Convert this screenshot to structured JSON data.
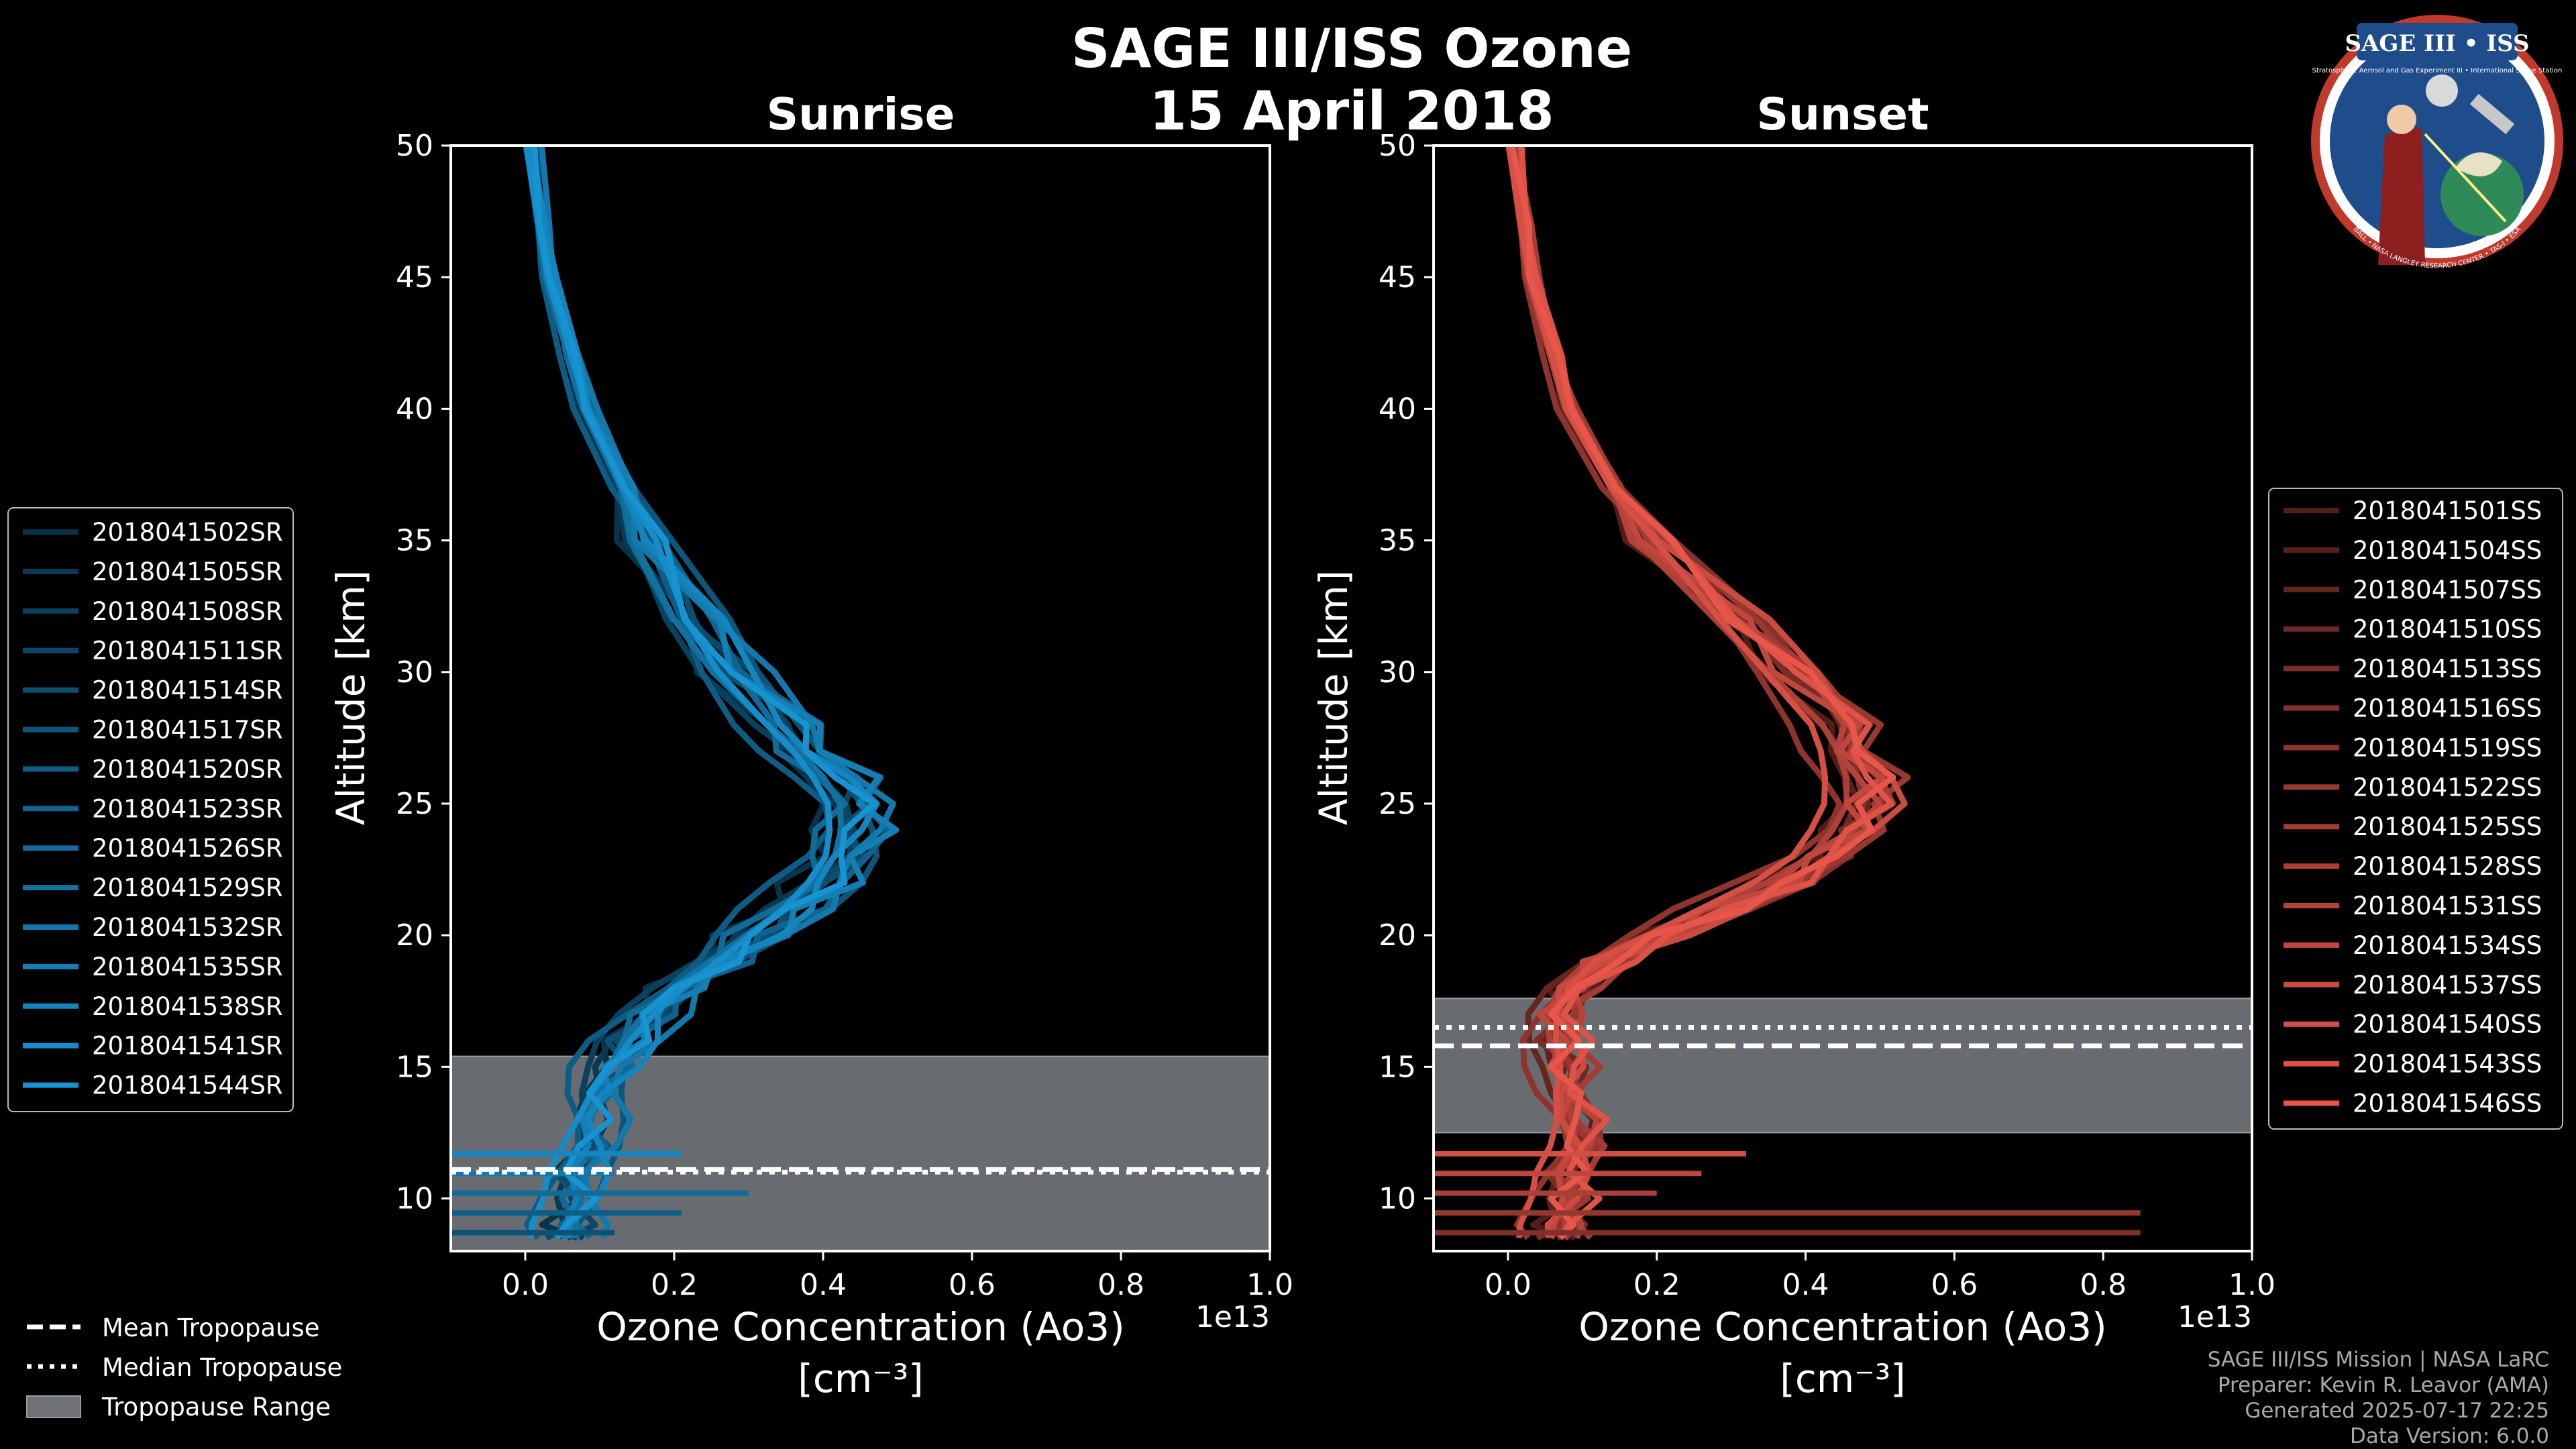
{
  "figure": {
    "title": "SAGE III/ISS Ozone",
    "date": "15 April 2018"
  },
  "badge": {
    "title": "SAGE III • ISS",
    "subtitle": "Stratospheric Aerosol and Gas Experiment III • International Space Station",
    "ring": "BALL • NASA LANGLEY RESEARCH CENTER • TAS-I • ESA"
  },
  "colors": {
    "sunrise": "#1793d2",
    "sunset": "#e8564a",
    "range": "#6e7276",
    "background": "#000000",
    "mean_line": "#ffffff",
    "median_line": "#ffffff"
  },
  "legend_tropopause": [
    {
      "label": "Mean Tropopause",
      "style": "dashed"
    },
    {
      "label": "Median Tropopause",
      "style": "dotted"
    },
    {
      "label": "Tropopause Range",
      "style": "patch"
    }
  ],
  "footer": [
    "SAGE III/ISS Mission | NASA LaRC",
    "Preparer: Kevin R. Leavor (AMA)",
    "Generated 2025-07-17 22:25",
    "Data Version: 6.0.0"
  ],
  "chart_data": [
    {
      "type": "line",
      "title": "Sunrise",
      "xlabel": "Ozone Concentration (Ao3)",
      "xunits": "[cm⁻³]",
      "ylabel": "Altitude [km]",
      "x_offset_label": "1e13",
      "xlim": [
        -0.1,
        1.0
      ],
      "ylim": [
        8,
        50
      ],
      "xticks": [
        "0.0",
        "0.2",
        "0.4",
        "0.6",
        "0.8",
        "1.0"
      ],
      "yticks": [
        "10",
        "15",
        "20",
        "25",
        "30",
        "35",
        "40",
        "45",
        "50"
      ],
      "tropopause": {
        "mean": 11.1,
        "median": 11.0,
        "range": [
          8,
          15.4
        ]
      },
      "altitudes": [
        50,
        47,
        45,
        42,
        40,
        37,
        35,
        32,
        30,
        28,
        27,
        26,
        25,
        24,
        23,
        22,
        21,
        20,
        19,
        18,
        17,
        16,
        15,
        14,
        13,
        12,
        11,
        10,
        9,
        8.5
      ],
      "base_profile": [
        0.005,
        0.02,
        0.03,
        0.06,
        0.08,
        0.13,
        0.16,
        0.22,
        0.27,
        0.34,
        0.38,
        0.41,
        0.43,
        0.43,
        0.42,
        0.39,
        0.35,
        0.3,
        0.25,
        0.2,
        0.16,
        0.13,
        0.11,
        0.09,
        0.08,
        0.07,
        0.06,
        0.06,
        0.05,
        0.05
      ],
      "series": [
        {
          "name": "2018041502SR",
          "shift": 0.0,
          "scale": 0.92
        },
        {
          "name": "2018041505SR",
          "shift": 0.01,
          "scale": 0.96
        },
        {
          "name": "2018041508SR",
          "shift": -0.01,
          "scale": 1.0
        },
        {
          "name": "2018041511SR",
          "shift": 0.02,
          "scale": 0.98
        },
        {
          "name": "2018041514SR",
          "shift": 0.0,
          "scale": 1.04
        },
        {
          "name": "2018041517SR",
          "shift": 0.03,
          "scale": 1.02
        },
        {
          "name": "2018041520SR",
          "shift": -0.02,
          "scale": 0.94
        },
        {
          "name": "2018041523SR",
          "shift": 0.01,
          "scale": 1.08
        },
        {
          "name": "2018041526SR",
          "shift": 0.02,
          "scale": 0.9
        },
        {
          "name": "2018041529SR",
          "shift": -0.01,
          "scale": 1.06
        },
        {
          "name": "2018041532SR",
          "shift": 0.04,
          "scale": 1.0
        },
        {
          "name": "2018041535SR",
          "shift": 0.0,
          "scale": 1.1
        },
        {
          "name": "2018041538SR",
          "shift": 0.03,
          "scale": 0.97
        },
        {
          "name": "2018041541SR",
          "shift": -0.02,
          "scale": 1.05
        },
        {
          "name": "2018041544SR",
          "shift": 0.01,
          "scale": 1.01
        }
      ]
    },
    {
      "type": "line",
      "title": "Sunset",
      "xlabel": "Ozone Concentration (Ao3)",
      "xunits": "[cm⁻³]",
      "ylabel": "Altitude [km]",
      "x_offset_label": "1e13",
      "xlim": [
        -0.1,
        1.0
      ],
      "ylim": [
        8,
        50
      ],
      "xticks": [
        "0.0",
        "0.2",
        "0.4",
        "0.6",
        "0.8",
        "1.0"
      ],
      "yticks": [
        "10",
        "15",
        "20",
        "25",
        "30",
        "35",
        "40",
        "45",
        "50"
      ],
      "tropopause": {
        "mean": 15.8,
        "median": 16.5,
        "range": [
          12.5,
          17.6
        ]
      },
      "altitudes": [
        50,
        47,
        45,
        42,
        40,
        37,
        35,
        32,
        30,
        28,
        27,
        26,
        25,
        24,
        23,
        22,
        21,
        20,
        19,
        18,
        17,
        16,
        15,
        14,
        13,
        12,
        11,
        10,
        9,
        8.5
      ],
      "base_profile": [
        0.005,
        0.02,
        0.03,
        0.06,
        0.08,
        0.14,
        0.19,
        0.3,
        0.37,
        0.44,
        0.46,
        0.47,
        0.47,
        0.45,
        0.42,
        0.36,
        0.28,
        0.2,
        0.12,
        0.08,
        0.06,
        0.06,
        0.07,
        0.07,
        0.08,
        0.08,
        0.07,
        0.07,
        0.06,
        0.06
      ],
      "series": [
        {
          "name": "2018041501SS",
          "shift": 0.0,
          "scale": 0.96
        },
        {
          "name": "2018041504SS",
          "shift": 0.01,
          "scale": 1.0
        },
        {
          "name": "2018041507SS",
          "shift": -0.01,
          "scale": 1.03
        },
        {
          "name": "2018041510SS",
          "shift": 0.02,
          "scale": 0.98
        },
        {
          "name": "2018041513SS",
          "shift": 0.0,
          "scale": 1.05
        },
        {
          "name": "2018041516SS",
          "shift": 0.02,
          "scale": 1.01
        },
        {
          "name": "2018041519SS",
          "shift": -0.02,
          "scale": 0.95
        },
        {
          "name": "2018041522SS",
          "shift": 0.01,
          "scale": 1.07
        },
        {
          "name": "2018041525SS",
          "shift": 0.03,
          "scale": 0.99
        },
        {
          "name": "2018041528SS",
          "shift": -0.01,
          "scale": 1.04
        },
        {
          "name": "2018041531SS",
          "shift": 0.02,
          "scale": 0.97
        },
        {
          "name": "2018041534SS",
          "shift": 0.0,
          "scale": 1.02
        },
        {
          "name": "2018041537SS",
          "shift": 0.01,
          "scale": 1.06
        },
        {
          "name": "2018041540SS",
          "shift": -0.02,
          "scale": 1.0
        },
        {
          "name": "2018041543SS",
          "shift": 0.03,
          "scale": 0.98
        },
        {
          "name": "2018041546SS",
          "shift": 0.01,
          "scale": 1.03
        }
      ]
    }
  ]
}
